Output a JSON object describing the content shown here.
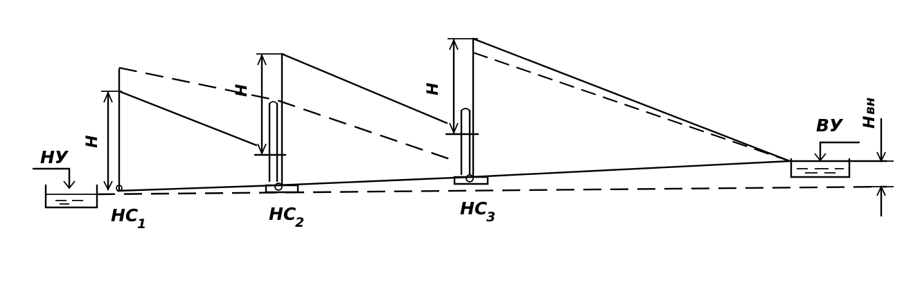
{
  "labels": {
    "lower_reservoir": "НУ",
    "upper_reservoir": "ВУ",
    "station_1_base": "НС",
    "station_1_sub": "1",
    "station_2_base": "НС",
    "station_2_sub": "2",
    "station_3_base": "НС",
    "station_3_sub": "3",
    "head_1": "H",
    "head_2": "H",
    "head_3": "H",
    "head_geo": "H",
    "head_geo_sub": "вн"
  }
}
